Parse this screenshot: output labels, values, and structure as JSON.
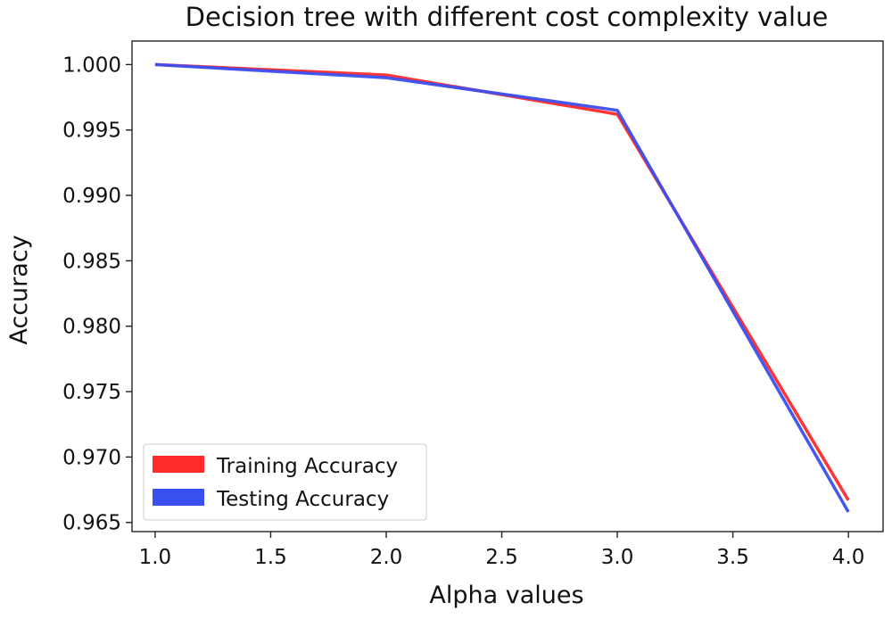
{
  "chart_data": {
    "type": "line",
    "title": "Decision tree with different cost complexity value",
    "xlabel": "Alpha values",
    "ylabel": "Accuracy",
    "xlim": [
      0.9,
      4.15
    ],
    "ylim": [
      0.9643,
      1.0018
    ],
    "xticks": [
      "1.0",
      "1.5",
      "2.0",
      "2.5",
      "3.0",
      "3.5",
      "4.0"
    ],
    "yticks": [
      "0.965",
      "0.970",
      "0.975",
      "0.980",
      "0.985",
      "0.990",
      "0.995",
      "1.000"
    ],
    "x": [
      1.0,
      2.0,
      3.0,
      4.0
    ],
    "series": [
      {
        "name": "Training Accuracy",
        "color": "#ff2a2a",
        "values": [
          1.0,
          0.9992,
          0.9962,
          0.9667
        ]
      },
      {
        "name": "Testing Accuracy",
        "color": "#3a4ff0",
        "values": [
          1.0,
          0.999,
          0.9965,
          0.9658
        ]
      }
    ],
    "legend_position": "lower-left",
    "grid": false
  }
}
